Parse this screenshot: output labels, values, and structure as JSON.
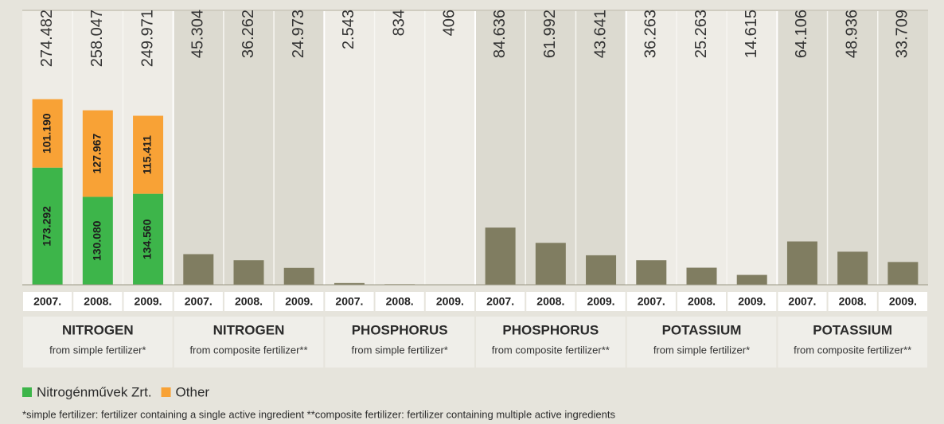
{
  "chart_data": {
    "type": "bar",
    "ylim": [
      0,
      300000
    ],
    "groups": [
      {
        "title": "NITROGEN",
        "subtitle": "from simple fertilizer*",
        "categories": [
          "2007.",
          "2008.",
          "2009."
        ],
        "totals": [
          274482,
          258047,
          249971
        ],
        "total_labels": [
          "274.482",
          "258.047",
          "249.971"
        ],
        "series": [
          {
            "name": "Nitrogénművek Zrt.",
            "color": "#3db54a",
            "values": [
              173292,
              130080,
              134560
            ],
            "value_labels": [
              "173.292",
              "130.080",
              "134.560"
            ]
          },
          {
            "name": "Other",
            "color": "#f8a236",
            "values": [
              101190,
              127967,
              115411
            ],
            "value_labels": [
              "101.190",
              "127.967",
              "115.411"
            ]
          }
        ]
      },
      {
        "title": "NITROGEN",
        "subtitle": "from composite fertilizer**",
        "categories": [
          "2007.",
          "2008.",
          "2009."
        ],
        "color": "#807d61",
        "values": [
          45304,
          36262,
          24973
        ],
        "value_labels": [
          "45.304",
          "36.262",
          "24.973"
        ]
      },
      {
        "title": "PHOSPHORUS",
        "subtitle": "from simple fertilizer*",
        "categories": [
          "2007.",
          "2008.",
          "2009."
        ],
        "color": "#807d61",
        "values": [
          2543,
          834,
          406
        ],
        "value_labels": [
          "2.543",
          "834",
          "406"
        ]
      },
      {
        "title": "PHOSPHORUS",
        "subtitle": "from composite fertilizer**",
        "categories": [
          "2007.",
          "2008.",
          "2009."
        ],
        "color": "#807d61",
        "values": [
          84636,
          61992,
          43641
        ],
        "value_labels": [
          "84.636",
          "61.992",
          "43.641"
        ]
      },
      {
        "title": "POTASSIUM",
        "subtitle": "from simple fertilizer*",
        "categories": [
          "2007.",
          "2008.",
          "2009."
        ],
        "color": "#807d61",
        "values": [
          36263,
          25263,
          14615
        ],
        "value_labels": [
          "36.263",
          "25.263",
          "14.615"
        ]
      },
      {
        "title": "POTASSIUM",
        "subtitle": "from composite fertilizer**",
        "categories": [
          "2007.",
          "2008.",
          "2009."
        ],
        "color": "#807d61",
        "values": [
          64106,
          48936,
          33709
        ],
        "value_labels": [
          "64.106",
          "48.936",
          "33.709"
        ]
      }
    ],
    "footnote": "*simple fertilizer: fertilizer containing a single active ingredient **composite fertilizer: fertilizer containing multiple active ingredients"
  }
}
